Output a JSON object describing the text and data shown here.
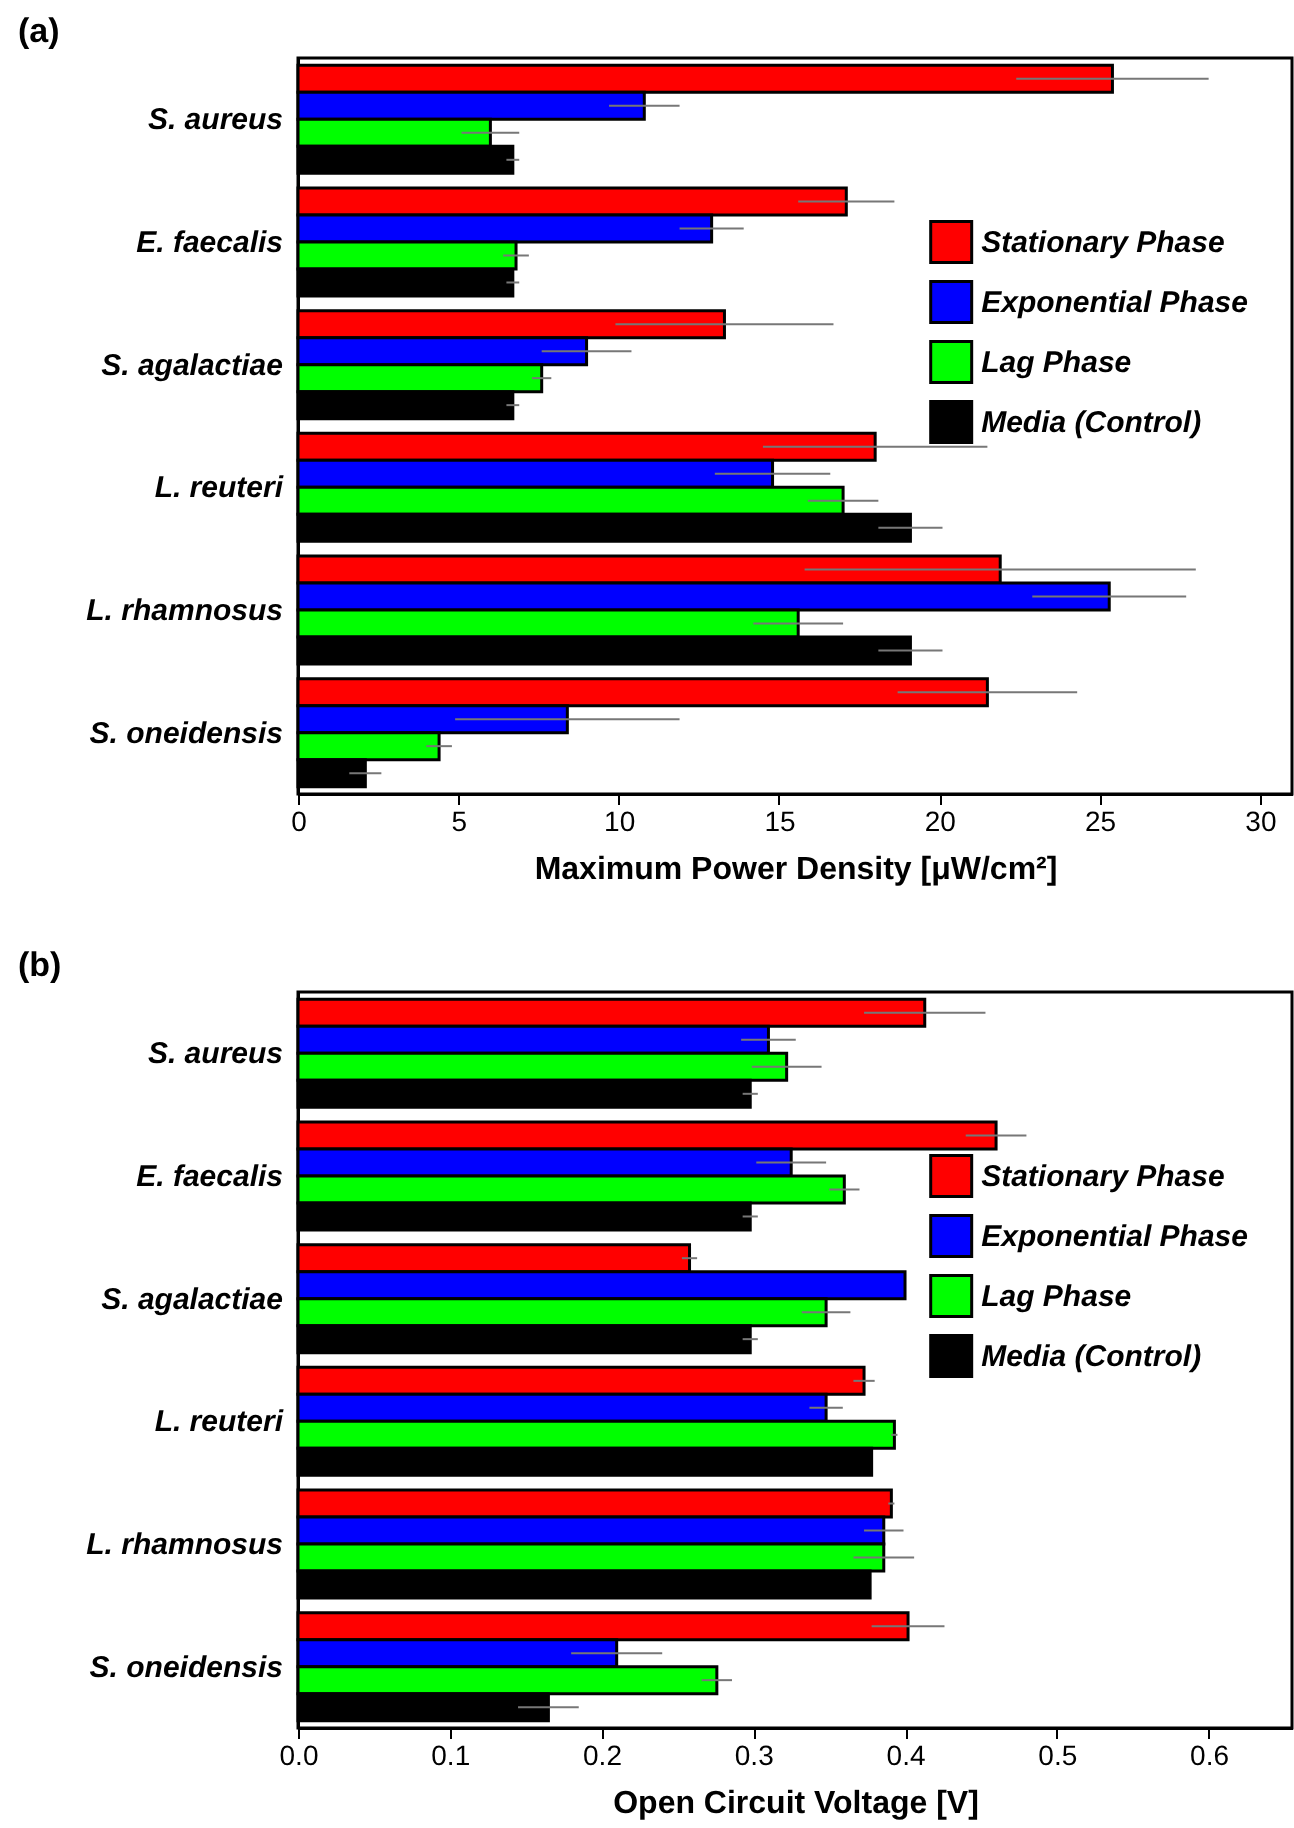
{
  "chart_data": [
    {
      "type": "bar",
      "orientation": "horizontal",
      "title": "(a)",
      "xlabel": "Maximum Power Density [μW/cm²]",
      "categories": [
        "S. aureus",
        "E. faecalis",
        "S. agalactiae",
        "L. reuteri",
        "L. rhamnosus",
        "S. oneidensis"
      ],
      "xlim": [
        0,
        31
      ],
      "xticks": [
        0,
        5,
        10,
        15,
        20,
        25,
        30
      ],
      "grid": false,
      "legend": "right",
      "series": [
        {
          "name": "Stationary Phase",
          "color": "#ff0000",
          "values": [
            25.4,
            17.1,
            13.3,
            18.0,
            21.9,
            21.5
          ],
          "errors": [
            3.0,
            1.5,
            3.4,
            3.5,
            6.1,
            2.8
          ]
        },
        {
          "name": "Exponential Phase",
          "color": "#0000ff",
          "values": [
            10.8,
            12.9,
            9.0,
            14.8,
            25.3,
            8.4
          ],
          "errors": [
            1.1,
            1.0,
            1.4,
            1.8,
            2.4,
            3.5
          ]
        },
        {
          "name": "Lag Phase",
          "color": "#00ff00",
          "values": [
            6.0,
            6.8,
            7.6,
            17.0,
            15.6,
            4.4
          ],
          "errors": [
            0.9,
            0.4,
            0.3,
            1.1,
            1.4,
            0.4
          ]
        },
        {
          "name": "Media (Control)",
          "color": "#000000",
          "values": [
            6.7,
            6.7,
            6.7,
            19.1,
            19.1,
            2.1
          ],
          "errors": [
            0.2,
            0.2,
            0.2,
            1.0,
            1.0,
            0.5
          ]
        }
      ]
    },
    {
      "type": "bar",
      "orientation": "horizontal",
      "title": "(b)",
      "xlabel": "Open Circuit Voltage [V]",
      "categories": [
        "S. aureus",
        "E. faecalis",
        "S. agalactiae",
        "L. reuteri",
        "L. rhamnosus",
        "S. oneidensis"
      ],
      "xlim": [
        0,
        0.655
      ],
      "xticks": [
        {
          "value": 0,
          "label": "0.0"
        },
        {
          "value": 0.1,
          "label": "0.1"
        },
        {
          "value": 0.2,
          "label": "0.2"
        },
        {
          "value": 0.3,
          "label": "0.3"
        },
        {
          "value": 0.4,
          "label": "0.4"
        },
        {
          "value": 0.5,
          "label": "0.5"
        },
        {
          "value": 0.6,
          "label": "0.6"
        }
      ],
      "grid": false,
      "legend": "right",
      "series": [
        {
          "name": "Stationary Phase",
          "color": "#ff0000",
          "values": [
            0.413,
            0.46,
            0.258,
            0.373,
            0.391,
            0.402
          ],
          "errors": [
            0.04,
            0.02,
            0.005,
            0.007,
            0.002,
            0.024
          ]
        },
        {
          "name": "Exponential Phase",
          "color": "#0000ff",
          "values": [
            0.31,
            0.325,
            0.4,
            0.348,
            0.386,
            0.21
          ],
          "errors": [
            0.018,
            0.023,
            null,
            0.011,
            0.013,
            0.03
          ]
        },
        {
          "name": "Lag Phase",
          "color": "#00ff00",
          "values": [
            0.322,
            0.36,
            0.348,
            0.393,
            0.386,
            0.276
          ],
          "errors": [
            0.023,
            0.01,
            0.016,
            0.002,
            0.02,
            0.01
          ]
        },
        {
          "name": "Media (Control)",
          "color": "#000000",
          "values": [
            0.298,
            0.298,
            0.298,
            0.378,
            0.377,
            0.165
          ],
          "errors": [
            0.005,
            0.005,
            0.005,
            null,
            null,
            0.02
          ]
        }
      ]
    }
  ]
}
